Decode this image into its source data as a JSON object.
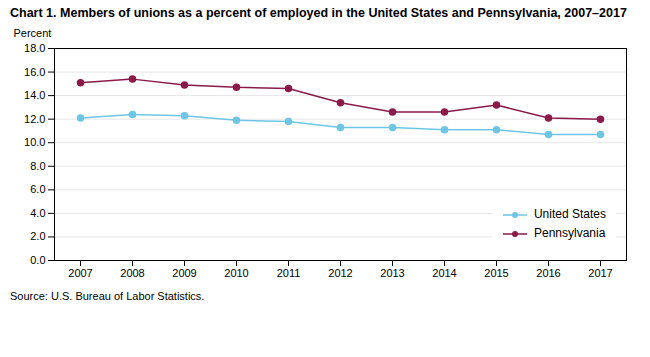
{
  "chart_data": {
    "type": "line",
    "title": "Chart 1. Members of unions as a percent of employed in the United States and Pennsylvania, 2007–2017",
    "ylabel": "Percent",
    "caption": "Source: U.S. Bureau of Labor Statistics.",
    "x": [
      2007,
      2008,
      2009,
      2010,
      2011,
      2012,
      2013,
      2014,
      2015,
      2016,
      2017
    ],
    "series": [
      {
        "name": "United States",
        "color": "#6EC6E6",
        "marker": "circle",
        "values": [
          12.1,
          12.4,
          12.3,
          11.9,
          11.8,
          11.3,
          11.3,
          11.1,
          11.1,
          10.7,
          10.7
        ]
      },
      {
        "name": "Pennsylvania",
        "color": "#8B1A4A",
        "marker": "circle",
        "values": [
          15.1,
          15.4,
          14.9,
          14.7,
          14.6,
          13.4,
          12.6,
          12.6,
          13.2,
          12.1,
          12.0
        ]
      }
    ],
    "xlim": [
      2006.5,
      2017.5
    ],
    "xticks": [
      2007,
      2008,
      2009,
      2010,
      2011,
      2012,
      2013,
      2014,
      2015,
      2016,
      2017
    ],
    "ylim": [
      0,
      18.0
    ],
    "yticks": [
      {
        "value": 0.0,
        "label": "0.0"
      },
      {
        "value": 2.0,
        "label": "2.0"
      },
      {
        "value": 4.0,
        "label": "4.0"
      },
      {
        "value": 6.0,
        "label": "6.0"
      },
      {
        "value": 8.0,
        "label": "8.0"
      },
      {
        "value": 10.0,
        "label": "10.0"
      },
      {
        "value": 12.0,
        "label": "12.0"
      },
      {
        "value": 14.0,
        "label": "14.0"
      },
      {
        "value": 16.0,
        "label": "16.0"
      },
      {
        "value": 18.0,
        "label": "18.0"
      }
    ],
    "grid": true,
    "legend": "lower right"
  }
}
